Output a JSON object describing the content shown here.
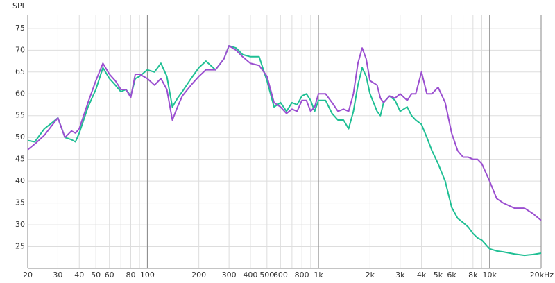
{
  "chart_data": {
    "type": "line",
    "y_label": "SPL",
    "log_x": true,
    "grid": true,
    "xlim": [
      20,
      20000
    ],
    "ylim": [
      20,
      78
    ],
    "yticks": [
      25,
      30,
      35,
      40,
      45,
      50,
      55,
      60,
      65,
      70,
      75
    ],
    "xticks": [
      20,
      30,
      40,
      50,
      60,
      80,
      100,
      200,
      300,
      400,
      500,
      600,
      800,
      {
        "value": 1000,
        "label": "1k"
      },
      {
        "value": 2000,
        "label": "2k"
      },
      {
        "value": 3000,
        "label": "3k"
      },
      {
        "value": 4000,
        "label": "4k"
      },
      {
        "value": 5000,
        "label": "5k"
      },
      {
        "value": 6000,
        "label": "6k"
      },
      {
        "value": 8000,
        "label": "8k"
      },
      {
        "value": 10000,
        "label": "10k"
      },
      {
        "value": 20000,
        "label": "20kHz"
      }
    ],
    "x_minor_grid": [
      70,
      90,
      700,
      900,
      7000,
      9000
    ],
    "x_major_grid": [
      100,
      1000,
      10000
    ],
    "x": [
      20,
      22,
      25,
      28,
      30,
      33,
      36,
      38,
      40,
      45,
      50,
      55,
      60,
      65,
      70,
      75,
      80,
      85,
      90,
      100,
      110,
      120,
      130,
      140,
      150,
      160,
      180,
      200,
      220,
      250,
      280,
      300,
      330,
      360,
      400,
      450,
      500,
      550,
      600,
      650,
      700,
      750,
      800,
      850,
      900,
      950,
      1000,
      1100,
      1200,
      1300,
      1400,
      1500,
      1600,
      1700,
      1800,
      1900,
      2000,
      2200,
      2300,
      2400,
      2600,
      2800,
      3000,
      3300,
      3500,
      3700,
      4000,
      4300,
      4600,
      5000,
      5500,
      6000,
      6500,
      7000,
      7500,
      8000,
      8500,
      9000,
      10000,
      11000,
      12000,
      14000,
      16000,
      18000,
      20000
    ],
    "series": [
      {
        "color": "#1fbf94",
        "values": [
          49.3,
          49,
          52,
          53.5,
          54.5,
          50,
          49.5,
          49,
          51,
          57,
          61,
          66,
          63.5,
          62,
          60.5,
          61,
          59.5,
          63.5,
          64,
          65.5,
          65,
          67,
          64,
          57,
          59,
          60.5,
          63.5,
          66,
          67.5,
          65.5,
          68,
          71,
          70.5,
          69,
          68.5,
          68.5,
          63,
          57,
          58,
          56,
          58,
          57.5,
          59.5,
          60,
          58.5,
          56,
          58.5,
          58.5,
          55.5,
          54,
          54,
          52,
          56,
          62,
          66,
          64,
          60,
          56,
          55,
          58,
          59.5,
          58.5,
          56,
          57,
          55,
          54,
          53,
          50,
          47,
          44,
          40,
          34,
          31.5,
          30.5,
          29.5,
          28,
          27,
          26.5,
          24.5,
          24,
          23.8,
          23.3,
          23,
          23.2,
          23.5
        ]
      },
      {
        "color": "#9b4fd0",
        "values": [
          47.2,
          48.5,
          50.5,
          53,
          54.5,
          50,
          51.5,
          51,
          52,
          58,
          63,
          67,
          64.5,
          63,
          61,
          61,
          59.2,
          64.5,
          64.5,
          63.5,
          62,
          63.5,
          61,
          54,
          57,
          59.5,
          62,
          64,
          65.5,
          65.5,
          68,
          71,
          70,
          68.5,
          67,
          66.5,
          64,
          58,
          57,
          55.5,
          56.5,
          56,
          58.5,
          58.5,
          56,
          57,
          60,
          60,
          58,
          56,
          56.5,
          56,
          60,
          67,
          70.5,
          68,
          63,
          62,
          59,
          58,
          59.5,
          59,
          60,
          58.5,
          60,
          60,
          65,
          60,
          60,
          61.5,
          58,
          51,
          47,
          45.5,
          45.5,
          45,
          45,
          44,
          40,
          36,
          35,
          33.8,
          33.8,
          32.5,
          31
        ]
      }
    ]
  }
}
